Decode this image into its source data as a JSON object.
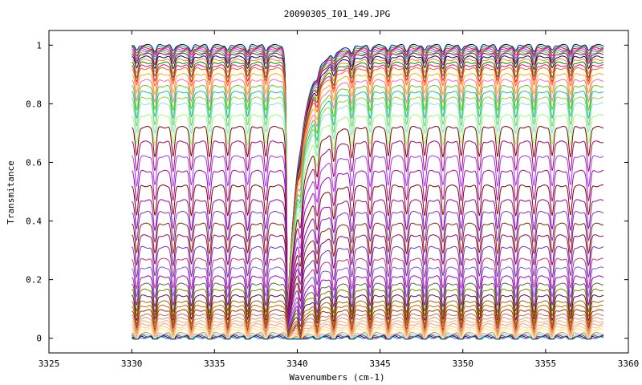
{
  "chart_data": {
    "type": "line",
    "title": "20090305_I01_149.JPG",
    "xlabel": "Wavenumbers (cm-1)",
    "ylabel": "Transmitance",
    "xlim": [
      3325,
      3360
    ],
    "ylim": [
      -0.05,
      1.05
    ],
    "x_ticks": [
      "3325",
      "3330",
      "3335",
      "3340",
      "3345",
      "3350",
      "3355",
      "3360"
    ],
    "y_ticks": [
      "0",
      "0.2",
      "0.4",
      "0.6",
      "0.8",
      "1"
    ],
    "grid": false,
    "legend": "none",
    "x_start": 3330,
    "x_end": 3358.5,
    "edge_position": 3339.4,
    "absorption_lines": [
      3330.3,
      3331.4,
      3332.5,
      3333.6,
      3334.7,
      3335.8,
      3337.0,
      3338.1,
      3340.2,
      3341.2,
      3342.2,
      3343.3,
      3344.4,
      3345.5,
      3346.6,
      3347.7,
      3348.8,
      3349.9,
      3351.0,
      3352.1,
      3353.2,
      3354.3,
      3355.4,
      3356.5,
      3357.6
    ],
    "series_count": 50,
    "series_levels": [
      1.0,
      0.995,
      0.99,
      0.985,
      0.98,
      0.975,
      0.97,
      0.96,
      0.95,
      0.94,
      0.93,
      0.92,
      0.9,
      0.88,
      0.86,
      0.84,
      0.82,
      0.8,
      0.76,
      0.72,
      0.67,
      0.62,
      0.57,
      0.52,
      0.47,
      0.43,
      0.39,
      0.35,
      0.31,
      0.27,
      0.24,
      0.21,
      0.185,
      0.165,
      0.145,
      0.125,
      0.11,
      0.095,
      0.08,
      0.068,
      0.057,
      0.047,
      0.038,
      0.03,
      0.023,
      0.017,
      0.012,
      0.008,
      0.005,
      0.002
    ],
    "colors": [
      "#0000ff",
      "#00aa00",
      "#ff0000",
      "#ff00ff",
      "#00aaaa",
      "#aaaa00",
      "#800080",
      "#000080",
      "#ff8800",
      "#008800",
      "#ff0088",
      "#ff6600",
      "#ffaa00",
      "#ff66cc",
      "#66cc00",
      "#00cc99",
      "#99cc33",
      "#88ddff",
      "#99ff66",
      "#800000",
      "#aa0066",
      "#9933ff",
      "#aa00aa",
      "#800000",
      "#990099",
      "#7733cc",
      "#8b2500",
      "#990066",
      "#6633cc",
      "#cc3366",
      "#7755ff",
      "#aa00cc",
      "#556b2f",
      "#808000",
      "#660066",
      "#996600",
      "#cc6600",
      "#993300",
      "#cc6666",
      "#cc9966",
      "#ffaa66",
      "#ff9999",
      "#ffcc66",
      "#ffdd99",
      "#ffffaa",
      "#ff8080",
      "#00ffff",
      "#ff0000",
      "#0000cc",
      "#008080"
    ]
  }
}
